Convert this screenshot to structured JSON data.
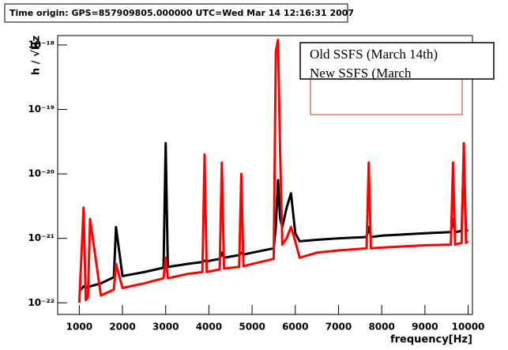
{
  "chart_data": {
    "type": "line",
    "title": "Time origin: GPS=857909805.000000 UTC=Wed Mar 14 12:16:31 2007",
    "ylabel": "h / √Hz",
    "xlabel": "frequency[Hz]",
    "log_y": true,
    "grid": false,
    "legend": "top-right",
    "xlim": [
      500,
      10100
    ],
    "ylim": [
      6.6e-23,
      1.4e-18
    ],
    "xticks": [
      1000,
      2000,
      3000,
      4000,
      5000,
      6000,
      7000,
      8000,
      9000,
      10000
    ],
    "yticks": [
      {
        "value": 1e-22,
        "label": "10⁻²²"
      },
      {
        "value": 1e-21,
        "label": "10⁻²¹"
      },
      {
        "value": 1e-20,
        "label": "10⁻²⁰"
      },
      {
        "value": 1e-19,
        "label": "10⁻¹⁹"
      },
      {
        "value": 1e-18,
        "label": "10⁻¹⁸"
      }
    ],
    "x": [
      1000,
      1100,
      1150,
      1200,
      1250,
      1500,
      1800,
      1850,
      2000,
      2500,
      2950,
      3000,
      3050,
      3500,
      3850,
      3900,
      3950,
      4250,
      4300,
      4350,
      4700,
      4750,
      4800,
      5000,
      5500,
      5550,
      5600,
      5650,
      5700,
      5800,
      5900,
      6000,
      6100,
      6500,
      7000,
      7650,
      7700,
      7750,
      8000,
      8500,
      9000,
      9600,
      9650,
      9700,
      9850,
      9900,
      9950,
      10000
    ],
    "series": [
      {
        "name": "Old SSFS (March 14th)",
        "color": "#000000",
        "values": [
          1.5e-22,
          1.8e-22,
          1.7e-22,
          1.8e-22,
          1.8e-22,
          2e-22,
          2.5e-22,
          1.5e-21,
          2.6e-22,
          3e-22,
          3.5e-22,
          3e-20,
          3.6e-22,
          4e-22,
          4.3e-22,
          4.5e-22,
          4.4e-22,
          4.8e-22,
          6e-22,
          5e-22,
          5.5e-22,
          6e-22,
          5.6e-22,
          6e-22,
          7e-22,
          1.5e-21,
          8e-21,
          2e-21,
          1.5e-21,
          3e-21,
          5e-21,
          1.2e-21,
          9e-22,
          9.5e-22,
          1e-21,
          1.05e-21,
          1.5e-21,
          1.05e-21,
          1.1e-21,
          1.15e-21,
          1.2e-21,
          1.25e-21,
          2e-21,
          1.25e-21,
          1.3e-21,
          2e-20,
          1.3e-21,
          1.35e-21
        ]
      },
      {
        "name": "New SSFS (March",
        "color": "#ff0000",
        "values": [
          1e-22,
          3e-21,
          1.1e-22,
          1.2e-22,
          2e-21,
          1.3e-22,
          1.6e-22,
          4e-22,
          1.7e-22,
          2e-22,
          2.4e-22,
          5e-22,
          2.4e-22,
          2.8e-22,
          3e-22,
          2e-20,
          3e-22,
          3.3e-22,
          1.5e-20,
          3.4e-22,
          3.6e-22,
          1e-20,
          3.7e-22,
          4e-22,
          4.8e-22,
          8e-19,
          1.2e-18,
          2e-20,
          8e-22,
          1e-21,
          1.5e-21,
          9e-22,
          5e-22,
          6e-22,
          6.5e-22,
          7e-22,
          1.5e-20,
          7e-22,
          7.2e-22,
          7.5e-22,
          7.8e-22,
          8e-22,
          1.5e-20,
          8e-22,
          8.5e-22,
          3e-20,
          8.5e-22,
          9e-22
        ]
      }
    ]
  }
}
